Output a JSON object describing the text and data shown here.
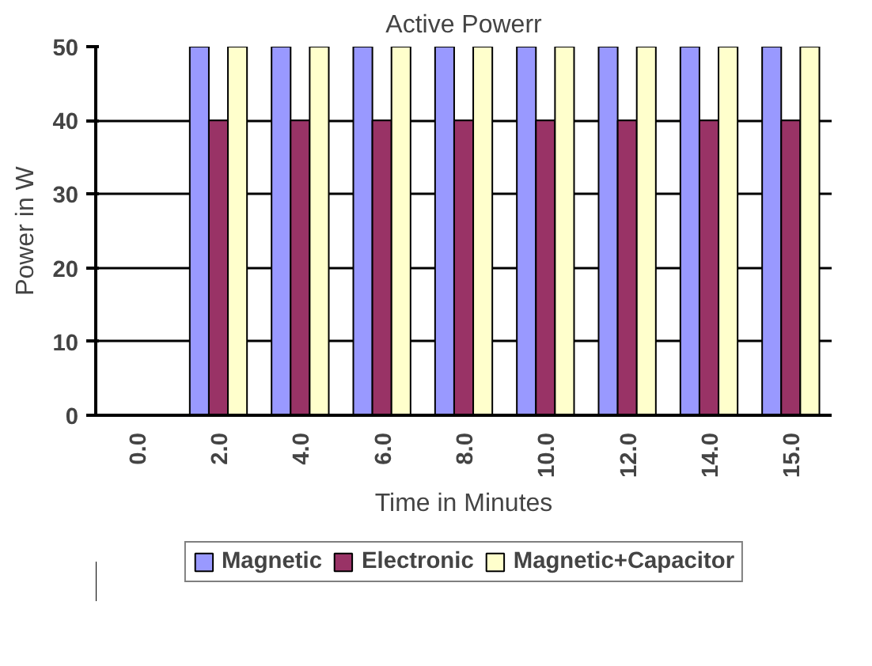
{
  "chart_data": {
    "type": "bar",
    "title": "Active Powerr",
    "xlabel": "Time in Minutes",
    "ylabel": "Power in W",
    "categories": [
      "0.0",
      "2.0",
      "4.0",
      "6.0",
      "8.0",
      "10.0",
      "12.0",
      "14.0",
      "15.0"
    ],
    "series": [
      {
        "name": "Magnetic",
        "color": "#9999ff",
        "values": [
          0,
          50,
          50,
          50,
          50,
          50,
          50,
          50,
          50
        ]
      },
      {
        "name": "Electronic",
        "color": "#993366",
        "values": [
          0,
          40,
          40,
          40,
          40,
          40,
          40,
          40,
          40
        ]
      },
      {
        "name": "Magnetic+Capacitor",
        "color": "#ffffcc",
        "values": [
          0,
          50,
          50,
          50,
          50,
          50,
          50,
          50,
          50
        ]
      }
    ],
    "ylim": [
      0,
      50
    ],
    "yticks": [
      0,
      10,
      20,
      30,
      40,
      50
    ],
    "grid": "y",
    "legend": "bottom"
  }
}
